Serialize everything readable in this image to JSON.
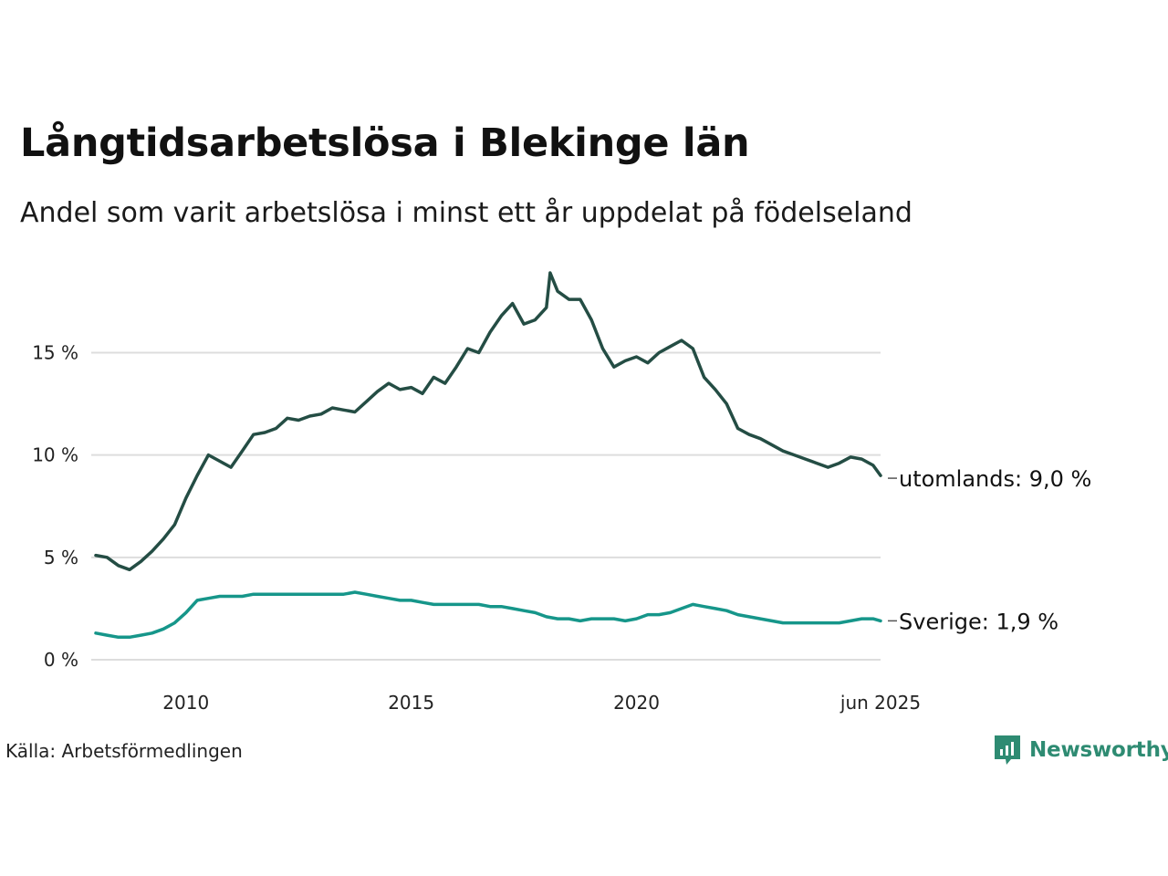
{
  "header": {
    "title": "Långtidsarbetslösa i Blekinge län",
    "subtitle": "Andel som varit arbetslösa i minst ett år uppdelat på födelseland"
  },
  "footer": {
    "source": "Källa: Arbetsförmedlingen",
    "brand": "Newsworthy",
    "brand_color": "#2e8b72"
  },
  "chart_data": {
    "type": "line",
    "x_ticks": [
      "2010",
      "2015",
      "2020",
      "jun 2025"
    ],
    "y_ticks": [
      "0 %",
      "5 %",
      "10 %",
      "15 %"
    ],
    "y_tick_values": [
      0,
      5,
      10,
      15
    ],
    "ylim": [
      0,
      19
    ],
    "xlim": [
      "2008-01",
      "2025-06"
    ],
    "grid": "horizontal",
    "series": [
      {
        "name": "utomlands",
        "end_label": "utomlands: 9,0 %",
        "color": "#244d44",
        "points": [
          [
            "2008-01",
            5.1
          ],
          [
            "2008-04",
            5.0
          ],
          [
            "2008-07",
            4.6
          ],
          [
            "2008-10",
            4.4
          ],
          [
            "2009-01",
            4.8
          ],
          [
            "2009-04",
            5.3
          ],
          [
            "2009-07",
            5.9
          ],
          [
            "2009-10",
            6.6
          ],
          [
            "2010-01",
            7.9
          ],
          [
            "2010-04",
            9.0
          ],
          [
            "2010-07",
            10.0
          ],
          [
            "2010-10",
            9.7
          ],
          [
            "2011-01",
            9.4
          ],
          [
            "2011-04",
            10.2
          ],
          [
            "2011-07",
            11.0
          ],
          [
            "2011-10",
            11.1
          ],
          [
            "2012-01",
            11.3
          ],
          [
            "2012-04",
            11.8
          ],
          [
            "2012-07",
            11.7
          ],
          [
            "2012-10",
            11.9
          ],
          [
            "2013-01",
            12.0
          ],
          [
            "2013-04",
            12.3
          ],
          [
            "2013-07",
            12.2
          ],
          [
            "2013-10",
            12.1
          ],
          [
            "2014-01",
            12.6
          ],
          [
            "2014-04",
            13.1
          ],
          [
            "2014-07",
            13.5
          ],
          [
            "2014-10",
            13.2
          ],
          [
            "2015-01",
            13.3
          ],
          [
            "2015-04",
            13.0
          ],
          [
            "2015-07",
            13.8
          ],
          [
            "2015-10",
            13.5
          ],
          [
            "2016-01",
            14.3
          ],
          [
            "2016-04",
            15.2
          ],
          [
            "2016-07",
            15.0
          ],
          [
            "2016-10",
            16.0
          ],
          [
            "2017-01",
            16.8
          ],
          [
            "2017-04",
            17.4
          ],
          [
            "2017-07",
            16.4
          ],
          [
            "2017-10",
            16.6
          ],
          [
            "2018-01",
            17.2
          ],
          [
            "2018-02",
            18.9
          ],
          [
            "2018-04",
            18.0
          ],
          [
            "2018-07",
            17.6
          ],
          [
            "2018-10",
            17.6
          ],
          [
            "2019-01",
            16.6
          ],
          [
            "2019-04",
            15.2
          ],
          [
            "2019-07",
            14.3
          ],
          [
            "2019-10",
            14.6
          ],
          [
            "2020-01",
            14.8
          ],
          [
            "2020-04",
            14.5
          ],
          [
            "2020-07",
            15.0
          ],
          [
            "2020-10",
            15.3
          ],
          [
            "2021-01",
            15.6
          ],
          [
            "2021-04",
            15.2
          ],
          [
            "2021-07",
            13.8
          ],
          [
            "2021-10",
            13.2
          ],
          [
            "2022-01",
            12.5
          ],
          [
            "2022-04",
            11.3
          ],
          [
            "2022-07",
            11.0
          ],
          [
            "2022-10",
            10.8
          ],
          [
            "2023-01",
            10.5
          ],
          [
            "2023-04",
            10.2
          ],
          [
            "2023-07",
            10.0
          ],
          [
            "2023-10",
            9.8
          ],
          [
            "2024-01",
            9.6
          ],
          [
            "2024-04",
            9.4
          ],
          [
            "2024-07",
            9.6
          ],
          [
            "2024-10",
            9.9
          ],
          [
            "2025-01",
            9.8
          ],
          [
            "2025-04",
            9.5
          ],
          [
            "2025-06",
            9.0
          ]
        ]
      },
      {
        "name": "Sverige",
        "end_label": "Sverige: 1,9 %",
        "color": "#16968a",
        "points": [
          [
            "2008-01",
            1.3
          ],
          [
            "2008-04",
            1.2
          ],
          [
            "2008-07",
            1.1
          ],
          [
            "2008-10",
            1.1
          ],
          [
            "2009-01",
            1.2
          ],
          [
            "2009-04",
            1.3
          ],
          [
            "2009-07",
            1.5
          ],
          [
            "2009-10",
            1.8
          ],
          [
            "2010-01",
            2.3
          ],
          [
            "2010-04",
            2.9
          ],
          [
            "2010-07",
            3.0
          ],
          [
            "2010-10",
            3.1
          ],
          [
            "2011-01",
            3.1
          ],
          [
            "2011-04",
            3.1
          ],
          [
            "2011-07",
            3.2
          ],
          [
            "2011-10",
            3.2
          ],
          [
            "2012-01",
            3.2
          ],
          [
            "2012-04",
            3.2
          ],
          [
            "2012-07",
            3.2
          ],
          [
            "2012-10",
            3.2
          ],
          [
            "2013-01",
            3.2
          ],
          [
            "2013-04",
            3.2
          ],
          [
            "2013-07",
            3.2
          ],
          [
            "2013-10",
            3.3
          ],
          [
            "2014-01",
            3.2
          ],
          [
            "2014-04",
            3.1
          ],
          [
            "2014-07",
            3.0
          ],
          [
            "2014-10",
            2.9
          ],
          [
            "2015-01",
            2.9
          ],
          [
            "2015-04",
            2.8
          ],
          [
            "2015-07",
            2.7
          ],
          [
            "2015-10",
            2.7
          ],
          [
            "2016-01",
            2.7
          ],
          [
            "2016-04",
            2.7
          ],
          [
            "2016-07",
            2.7
          ],
          [
            "2016-10",
            2.6
          ],
          [
            "2017-01",
            2.6
          ],
          [
            "2017-04",
            2.5
          ],
          [
            "2017-07",
            2.4
          ],
          [
            "2017-10",
            2.3
          ],
          [
            "2018-01",
            2.1
          ],
          [
            "2018-04",
            2.0
          ],
          [
            "2018-07",
            2.0
          ],
          [
            "2018-10",
            1.9
          ],
          [
            "2019-01",
            2.0
          ],
          [
            "2019-04",
            2.0
          ],
          [
            "2019-07",
            2.0
          ],
          [
            "2019-10",
            1.9
          ],
          [
            "2020-01",
            2.0
          ],
          [
            "2020-04",
            2.2
          ],
          [
            "2020-07",
            2.2
          ],
          [
            "2020-10",
            2.3
          ],
          [
            "2021-01",
            2.5
          ],
          [
            "2021-04",
            2.7
          ],
          [
            "2021-07",
            2.6
          ],
          [
            "2021-10",
            2.5
          ],
          [
            "2022-01",
            2.4
          ],
          [
            "2022-04",
            2.2
          ],
          [
            "2022-07",
            2.1
          ],
          [
            "2022-10",
            2.0
          ],
          [
            "2023-01",
            1.9
          ],
          [
            "2023-04",
            1.8
          ],
          [
            "2023-07",
            1.8
          ],
          [
            "2023-10",
            1.8
          ],
          [
            "2024-01",
            1.8
          ],
          [
            "2024-04",
            1.8
          ],
          [
            "2024-07",
            1.8
          ],
          [
            "2024-10",
            1.9
          ],
          [
            "2025-01",
            2.0
          ],
          [
            "2025-04",
            2.0
          ],
          [
            "2025-06",
            1.9
          ]
        ]
      }
    ]
  }
}
